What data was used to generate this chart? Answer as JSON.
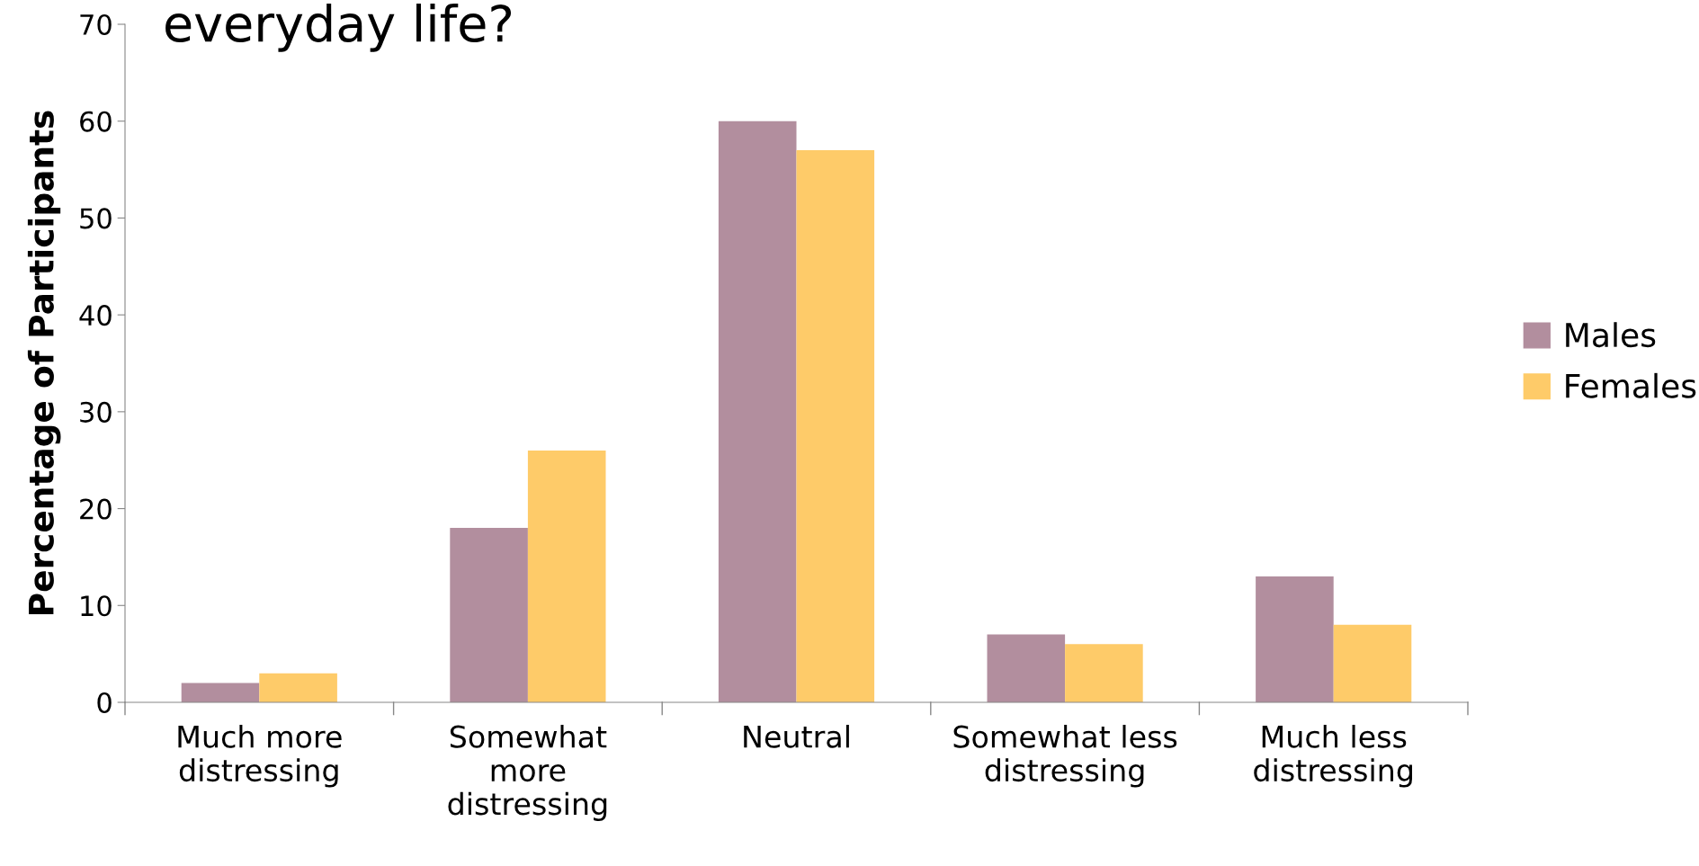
{
  "chart_data": {
    "type": "bar",
    "title": "everyday life?",
    "ylabel": "Percentage of Participants",
    "categories": [
      "Much more\ndistressing",
      "Somewhat\nmore\ndistressing",
      "Neutral",
      "Somewhat less\ndistressing",
      "Much less\ndistressing"
    ],
    "series": [
      {
        "name": "Males",
        "color": "#b28e9e",
        "values": [
          2,
          18,
          60,
          7,
          13
        ]
      },
      {
        "name": "Females",
        "color": "#fecb69",
        "values": [
          3,
          26,
          57,
          6,
          8
        ]
      }
    ],
    "ylim": [
      0,
      70
    ],
    "yticks": [
      0,
      10,
      20,
      30,
      40,
      50,
      60,
      70
    ],
    "grid": false,
    "legend": "right"
  }
}
